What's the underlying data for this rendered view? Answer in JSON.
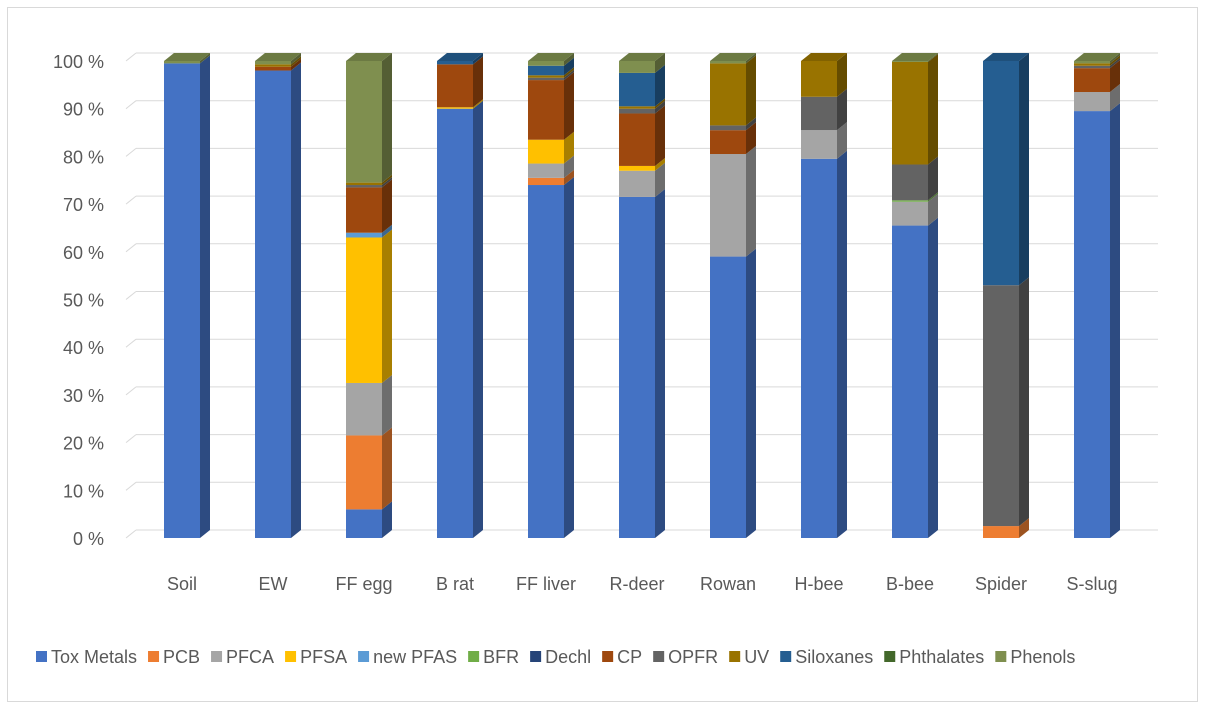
{
  "chart_data": {
    "type": "bar",
    "stacked": true,
    "percent_stacked": true,
    "three_d": true,
    "title": "",
    "xlabel": "",
    "ylabel": "",
    "ylim": [
      0,
      100
    ],
    "yticks": [
      0,
      10,
      20,
      30,
      40,
      50,
      60,
      70,
      80,
      90,
      100
    ],
    "ytick_labels": [
      "0 %",
      "10 %",
      "20 %",
      "30 %",
      "40 %",
      "50 %",
      "60 %",
      "70 %",
      "80 %",
      "90 %",
      "100 %"
    ],
    "grid": true,
    "legend_position": "bottom",
    "categories": [
      "Soil",
      "EW",
      "FF egg",
      "B rat",
      "FF liver",
      "R-deer",
      "Rowan",
      "H-bee",
      "B-bee",
      "Spider",
      "S-slug"
    ],
    "series": [
      {
        "name": "Tox Metals",
        "color": "#4472C4",
        "values": [
          99.5,
          98.0,
          6.0,
          90.0,
          74.0,
          71.5,
          59.0,
          79.5,
          65.5,
          0.0,
          89.5
        ]
      },
      {
        "name": "PCB",
        "color": "#ED7D31",
        "values": [
          0.0,
          0.0,
          15.5,
          0.0,
          1.5,
          0.0,
          0.0,
          0.0,
          0.0,
          2.5,
          0.0
        ]
      },
      {
        "name": "PFCA",
        "color": "#A5A5A5",
        "values": [
          0.0,
          0.0,
          11.0,
          0.0,
          3.0,
          5.5,
          21.5,
          6.0,
          5.0,
          0.0,
          4.0
        ]
      },
      {
        "name": "PFSA",
        "color": "#FFC000",
        "values": [
          0.0,
          0.0,
          30.5,
          0.3,
          5.0,
          1.0,
          0.0,
          0.0,
          0.0,
          0.0,
          0.0
        ]
      },
      {
        "name": "new PFAS",
        "color": "#5B9BD5",
        "values": [
          0.0,
          0.0,
          1.0,
          0.0,
          0.0,
          0.0,
          0.0,
          0.0,
          0.0,
          0.0,
          0.0
        ]
      },
      {
        "name": "BFR",
        "color": "#70AD47",
        "values": [
          0.0,
          0.0,
          0.0,
          0.0,
          0.0,
          0.0,
          0.0,
          0.0,
          0.3,
          0.0,
          0.0
        ]
      },
      {
        "name": "Dechl",
        "color": "#264478",
        "values": [
          0.0,
          0.0,
          0.0,
          0.0,
          0.0,
          0.0,
          0.0,
          0.0,
          0.0,
          0.0,
          0.0
        ]
      },
      {
        "name": "CP",
        "color": "#9E480E",
        "values": [
          0.0,
          0.8,
          9.5,
          9.0,
          12.5,
          11.0,
          5.0,
          0.0,
          0.0,
          0.0,
          5.0
        ]
      },
      {
        "name": "OPFR",
        "color": "#636363",
        "values": [
          0.0,
          0.0,
          0.5,
          0.0,
          0.5,
          1.0,
          1.0,
          7.0,
          7.5,
          50.5,
          0.5
        ]
      },
      {
        "name": "UV",
        "color": "#997300",
        "values": [
          0.0,
          0.5,
          0.5,
          0.0,
          0.5,
          0.5,
          13.0,
          7.5,
          21.5,
          0.0,
          0.5
        ]
      },
      {
        "name": "Siloxanes",
        "color": "#255E91",
        "values": [
          0.0,
          0.0,
          0.0,
          0.7,
          2.0,
          7.0,
          0.0,
          0.0,
          0.0,
          47.0,
          0.0
        ]
      },
      {
        "name": "Phthalates",
        "color": "#43682B",
        "values": [
          0.0,
          0.0,
          0.0,
          0.0,
          0.0,
          0.0,
          0.0,
          0.0,
          0.0,
          0.0,
          0.0
        ]
      },
      {
        "name": "Phenols",
        "color": "#7F8F4F",
        "values": [
          0.5,
          0.7,
          25.5,
          0.0,
          1.0,
          2.5,
          0.5,
          0.0,
          0.2,
          0.0,
          0.5
        ]
      }
    ]
  }
}
